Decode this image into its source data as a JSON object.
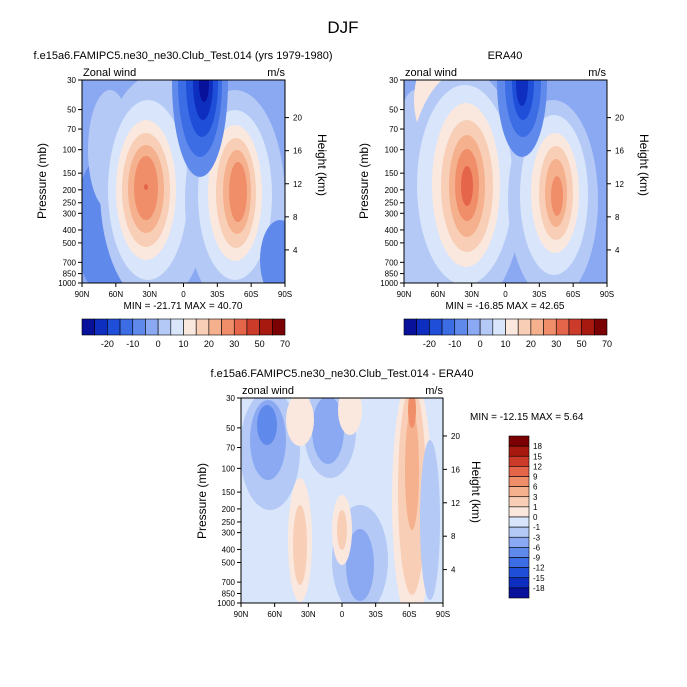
{
  "figure": {
    "title": "DJF"
  },
  "chart_data": [
    {
      "type": "heatmap",
      "id": "panel1",
      "title": "f.e15a6.FAMIPC5.ne30_ne30.Club_Test.014 (yrs 1979-1980)",
      "left_label": "Zonal wind",
      "right_label": "m/s",
      "xlabel": "",
      "ylabel": "Pressure (mb)",
      "ylabel_right": "Height (km)",
      "x_ticks": [
        "90N",
        "60N",
        "30N",
        "0",
        "30S",
        "60S",
        "90S"
      ],
      "x_tick_values": [
        90,
        60,
        30,
        0,
        -30,
        -60,
        -90
      ],
      "xlim": [
        90,
        -90
      ],
      "y_ticks": [
        "30",
        "50",
        "70",
        "100",
        "150",
        "200",
        "250",
        "300",
        "400",
        "500",
        "700",
        "850",
        "1000"
      ],
      "y_tick_values": [
        30,
        50,
        70,
        100,
        150,
        200,
        250,
        300,
        400,
        500,
        700,
        850,
        1000
      ],
      "ylim": [
        30,
        1000
      ],
      "height_ticks": [
        "20",
        "16",
        "12",
        "8",
        "4"
      ],
      "height_tick_values": [
        20,
        16,
        12,
        8,
        4
      ],
      "stats_text": "MIN = -21.71   MAX = 40.70",
      "min": -21.71,
      "max": 40.7,
      "features": [
        {
          "lat": 30,
          "p": 200,
          "value": 40
        },
        {
          "lat": -45,
          "p": 200,
          "value": 34
        },
        {
          "lat": 2,
          "p": 30,
          "value": -21
        }
      ]
    },
    {
      "type": "heatmap",
      "id": "panel2",
      "title": "ERA40",
      "left_label": "zonal wind",
      "right_label": "m/s",
      "xlabel": "",
      "ylabel": "Pressure (mb)",
      "ylabel_right": "Height (km)",
      "x_ticks": [
        "90N",
        "60N",
        "30N",
        "0",
        "30S",
        "60S",
        "90S"
      ],
      "x_tick_values": [
        90,
        60,
        30,
        0,
        -30,
        -60,
        -90
      ],
      "xlim": [
        90,
        -90
      ],
      "y_ticks": [
        "30",
        "50",
        "70",
        "100",
        "150",
        "200",
        "250",
        "300",
        "400",
        "500",
        "700",
        "850",
        "1000"
      ],
      "y_tick_values": [
        30,
        50,
        70,
        100,
        150,
        200,
        250,
        300,
        400,
        500,
        700,
        850,
        1000
      ],
      "ylim": [
        30,
        1000
      ],
      "height_ticks": [
        "20",
        "16",
        "12",
        "8",
        "4"
      ],
      "height_tick_values": [
        20,
        16,
        12,
        8,
        4
      ],
      "stats_text": "MIN = -16.85   MAX = 42.65",
      "min": -16.85,
      "max": 42.65,
      "features": [
        {
          "lat": 30,
          "p": 200,
          "value": 42
        },
        {
          "lat": -45,
          "p": 230,
          "value": 33
        },
        {
          "lat": 0,
          "p": 30,
          "value": -17
        }
      ]
    },
    {
      "type": "heatmap",
      "id": "panel3",
      "title": "f.e15a6.FAMIPC5.ne30_ne30.Club_Test.014 - ERA40",
      "left_label": "zonal wind",
      "right_label": "m/s",
      "xlabel": "",
      "ylabel": "Pressure (mb)",
      "ylabel_right": "Height (km)",
      "x_ticks": [
        "90N",
        "60N",
        "30N",
        "0",
        "30S",
        "60S",
        "90S"
      ],
      "x_tick_values": [
        90,
        60,
        30,
        0,
        -30,
        -60,
        -90
      ],
      "xlim": [
        90,
        -90
      ],
      "y_ticks": [
        "30",
        "50",
        "70",
        "100",
        "150",
        "200",
        "250",
        "300",
        "400",
        "500",
        "700",
        "850",
        "1000"
      ],
      "y_tick_values": [
        30,
        50,
        70,
        100,
        150,
        200,
        250,
        300,
        400,
        500,
        700,
        850,
        1000
      ],
      "ylim": [
        30,
        1000
      ],
      "height_ticks": [
        "20",
        "16",
        "12",
        "8",
        "4"
      ],
      "height_tick_values": [
        20,
        16,
        12,
        8,
        4
      ],
      "stats_text": "MIN = -12.15   MAX =  5.64",
      "min": -12.15,
      "max": 5.64
    }
  ],
  "colorbars": {
    "full": {
      "labels": [
        "-20",
        "-10",
        "0",
        "10",
        "20",
        "30",
        "50",
        "70"
      ],
      "colors": [
        "#08119a",
        "#0e2ec0",
        "#1f4fd8",
        "#3c6de4",
        "#6089ec",
        "#8aa9f2",
        "#b4c9f5",
        "#d8e5fa",
        "#fae8de",
        "#f8cfb6",
        "#f5b08e",
        "#f08e6a",
        "#e5654a",
        "#cc3b2a",
        "#a7190f",
        "#7b0003"
      ]
    },
    "diff": {
      "labels": [
        "18",
        "15",
        "12",
        "9",
        "6",
        "3",
        "1",
        "0",
        "-1",
        "-3",
        "-6",
        "-9",
        "-12",
        "-15",
        "-18"
      ],
      "colors": [
        "#7b0003",
        "#a7190f",
        "#cc3b2a",
        "#e5654a",
        "#f08e6a",
        "#f5b08e",
        "#f8cfb6",
        "#fae8de",
        "#d8e5fa",
        "#b4c9f5",
        "#8aa9f2",
        "#6089ec",
        "#3c6de4",
        "#1f4fd8",
        "#0e2ec0",
        "#08119a"
      ]
    }
  }
}
